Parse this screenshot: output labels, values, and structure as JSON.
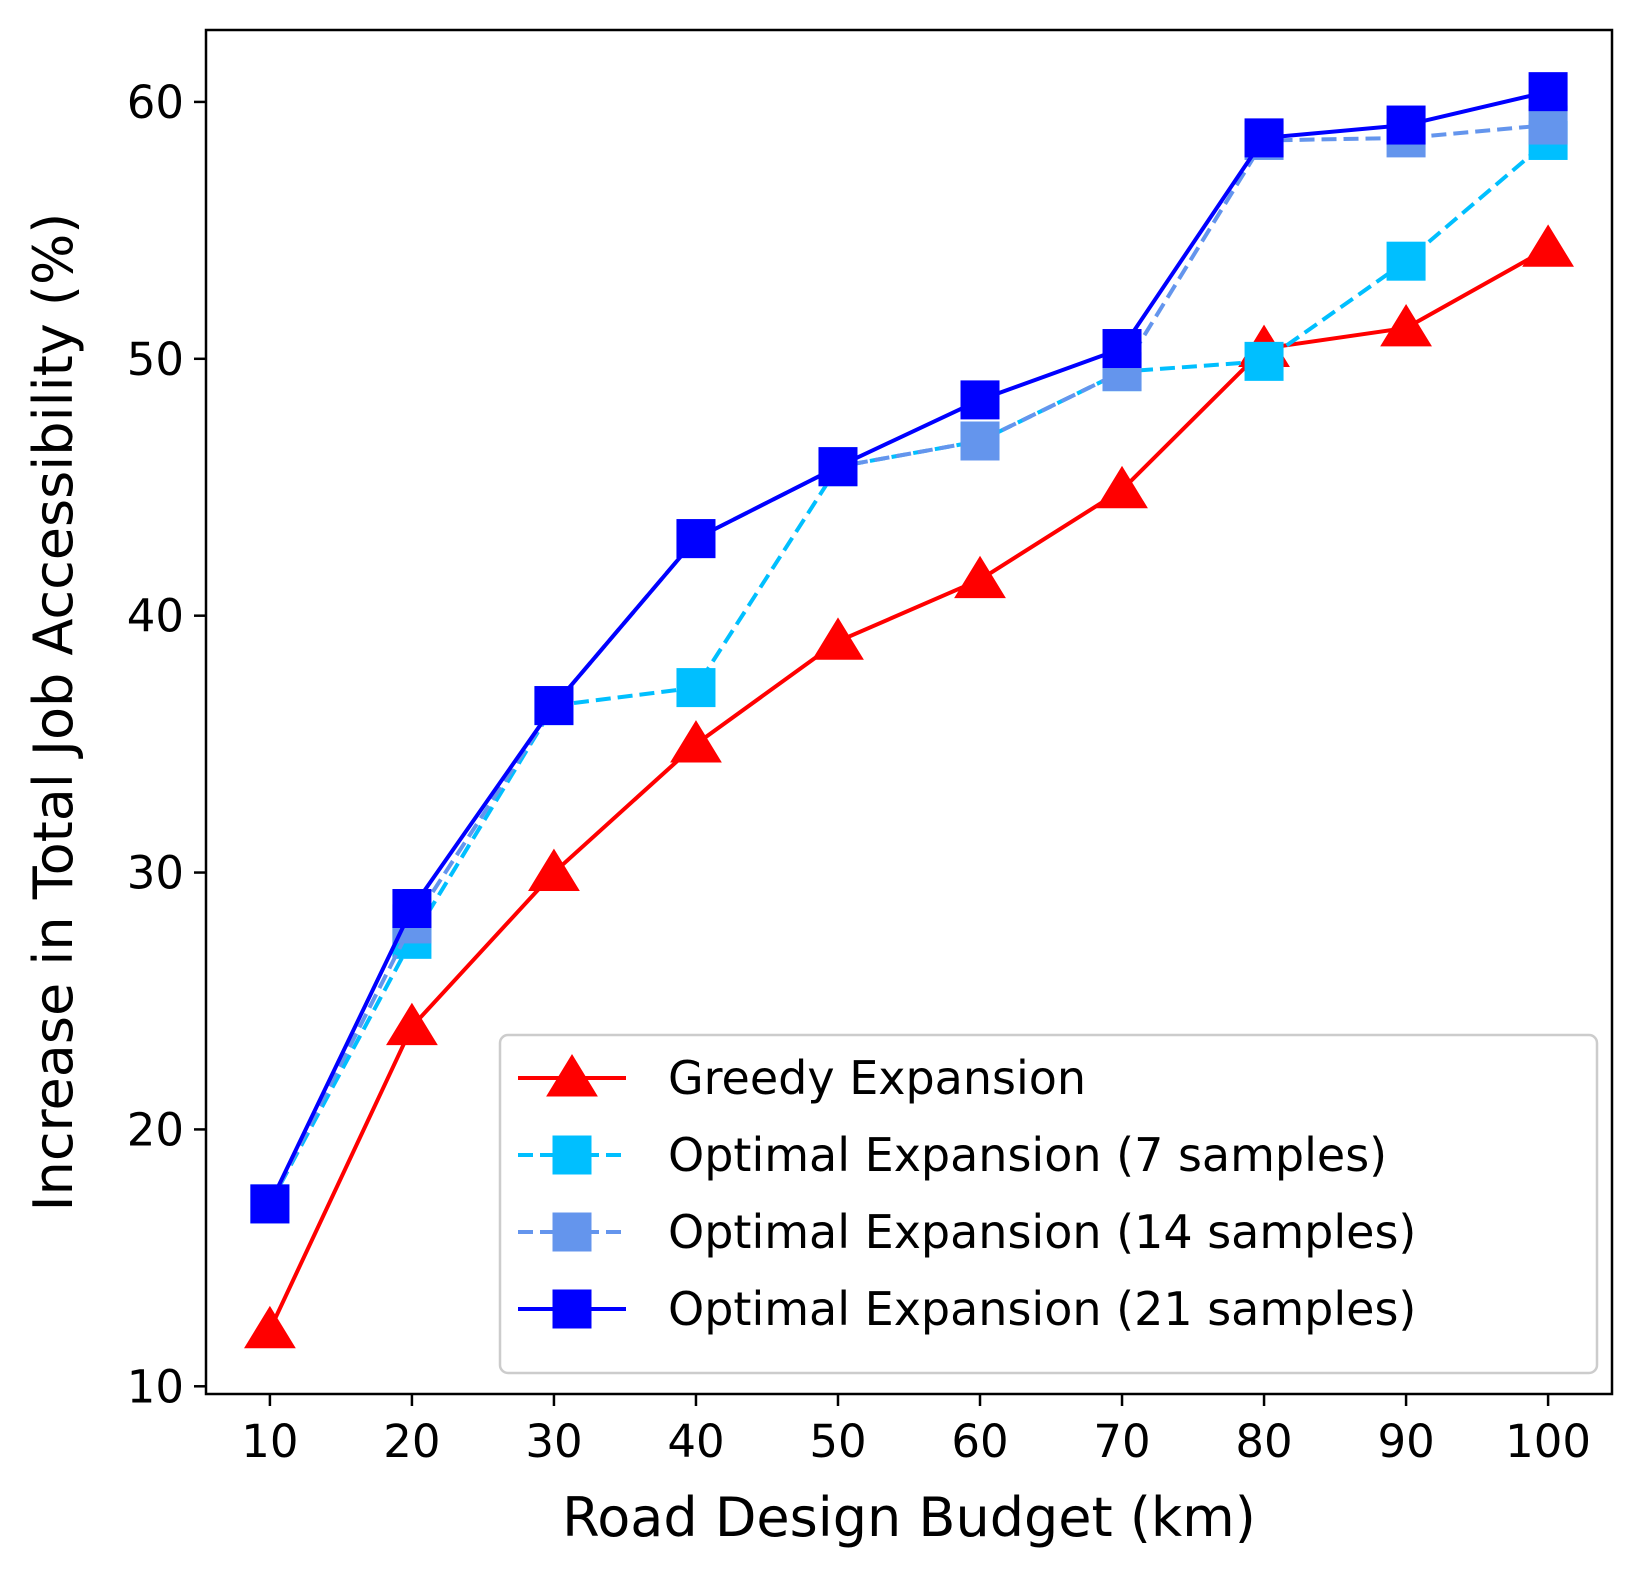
{
  "chart_data": {
    "type": "line",
    "title": "",
    "xlabel": "Road Design Budget (km)",
    "ylabel": "Increase in Total Job Accessibility (%)",
    "x": [
      10,
      20,
      30,
      40,
      50,
      60,
      70,
      80,
      90,
      100
    ],
    "xlim": [
      5.5,
      104.5
    ],
    "ylim": [
      9.7,
      62.8
    ],
    "xticks": [
      10,
      20,
      30,
      40,
      50,
      60,
      70,
      80,
      90,
      100
    ],
    "yticks": [
      10,
      20,
      30,
      40,
      50,
      60
    ],
    "grid": false,
    "legend_position": "lower-right",
    "series": [
      {
        "name": "Greedy Expansion",
        "color": "#ff0000",
        "linestyle": "solid",
        "marker": "triangle",
        "values": [
          12.2,
          24.0,
          30.0,
          35.0,
          39.0,
          41.4,
          44.9,
          50.4,
          51.2,
          54.3
        ]
      },
      {
        "name": "Optimal Expansion (7 samples)",
        "color": "#00bfff",
        "linestyle": "dashed",
        "marker": "square",
        "values": [
          17.1,
          27.4,
          36.5,
          37.2,
          45.8,
          46.8,
          49.5,
          49.9,
          53.8,
          58.5
        ]
      },
      {
        "name": "Optimal Expansion (14 samples)",
        "color": "#6495ed",
        "linestyle": "dashed",
        "marker": "square",
        "values": [
          17.1,
          28.0,
          36.5,
          43.0,
          45.8,
          46.8,
          49.5,
          58.5,
          58.6,
          59.1
        ]
      },
      {
        "name": "Optimal Expansion (21 samples)",
        "color": "#0000ff",
        "linestyle": "solid",
        "marker": "square",
        "values": [
          17.1,
          28.6,
          36.5,
          43.0,
          45.8,
          48.4,
          50.4,
          58.6,
          59.1,
          60.4
        ]
      }
    ]
  }
}
